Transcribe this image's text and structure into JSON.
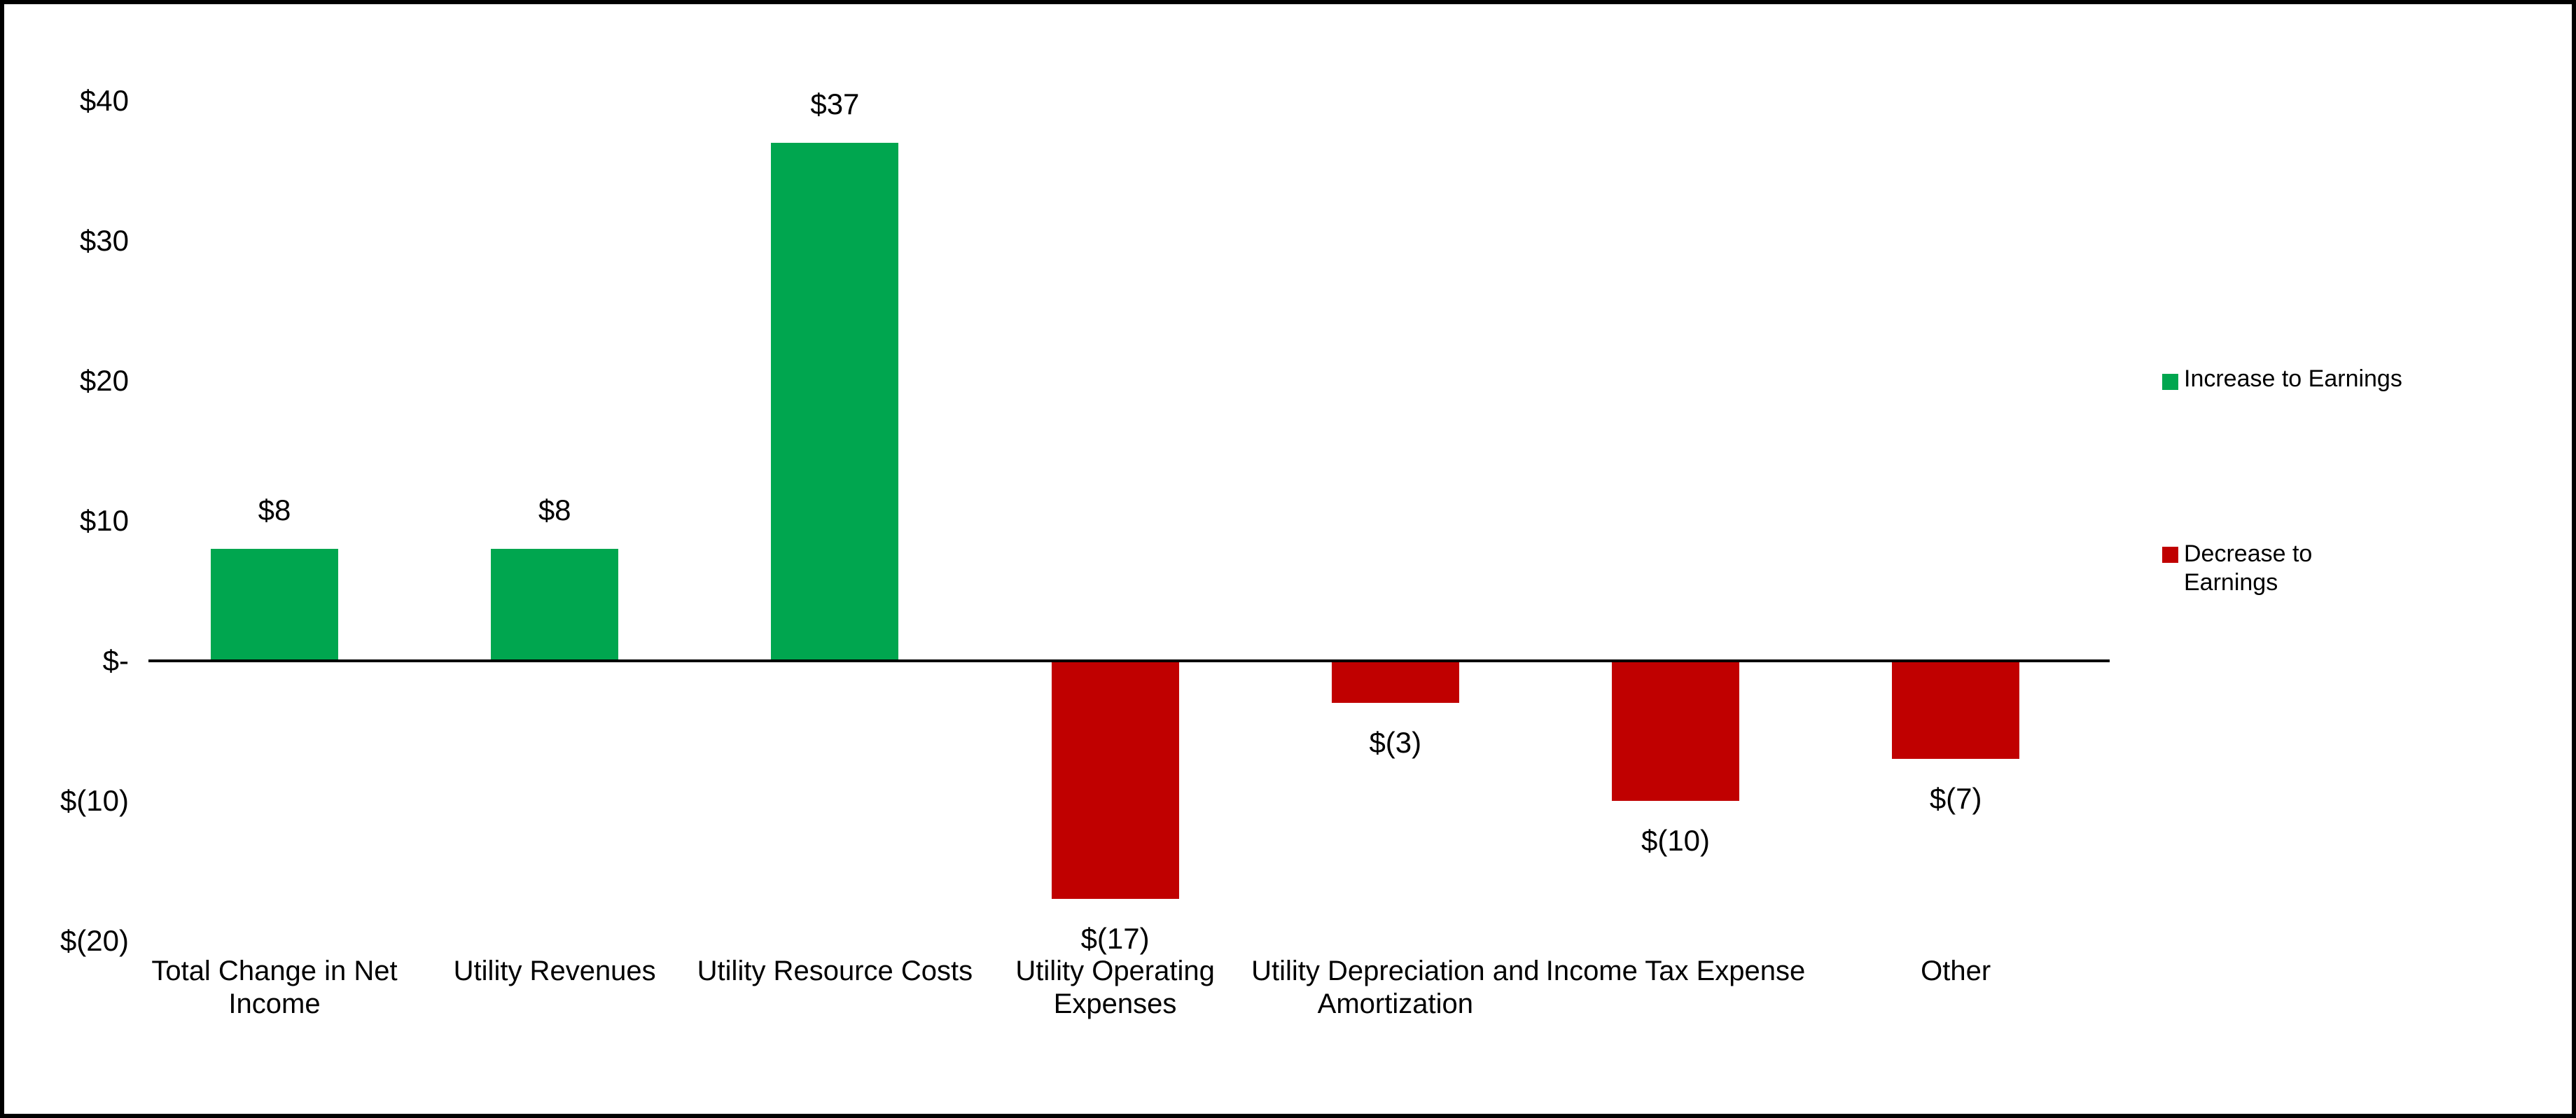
{
  "chart_data": {
    "type": "bar",
    "title": "",
    "xlabel": "",
    "ylabel": "",
    "categories": [
      "Total Change in Net Income",
      "Utility Revenues",
      "Utility Resource Costs",
      "Utility Operating Expenses",
      "Utility Depreciation and Amortization",
      "Income Tax Expense",
      "Other"
    ],
    "category_display": [
      "Total Change in Net\nIncome",
      "Utility Revenues",
      "Utility Resource Costs",
      "Utility Operating\nExpenses",
      "Utility Depreciation and\nAmortization",
      "Income Tax Expense",
      "Other"
    ],
    "values": [
      8,
      8,
      37,
      -17,
      -3,
      -10,
      -7
    ],
    "bar_labels": [
      "$8",
      "$8",
      "$37",
      "$(17)",
      "$(3)",
      "$(10)",
      "$(7)"
    ],
    "y_axis": {
      "ticks": [
        {
          "label": "$40",
          "value": 40
        },
        {
          "label": "$30",
          "value": 30
        },
        {
          "label": "$20",
          "value": 20
        },
        {
          "label": "$10",
          "value": 10
        },
        {
          "label": "$-",
          "value": 0
        },
        {
          "label": "$(10)",
          "value": -10
        },
        {
          "label": "$(20)",
          "value": -20
        }
      ],
      "range": [
        -20,
        40
      ],
      "grid": false
    },
    "colors": {
      "increase": "#00A64F",
      "decrease": "#C00000",
      "axis_line": "#000000",
      "text": "#000000",
      "background": "#FFFFFF",
      "border": "#000000"
    },
    "legend": {
      "position": "right",
      "items": [
        {
          "label": "Increase to Earnings",
          "display": "Increase to Earnings",
          "color": "#00A64F"
        },
        {
          "label": "Decrease to Earnings",
          "display": "Decrease to\nEarnings",
          "color": "#C00000"
        }
      ]
    }
  }
}
